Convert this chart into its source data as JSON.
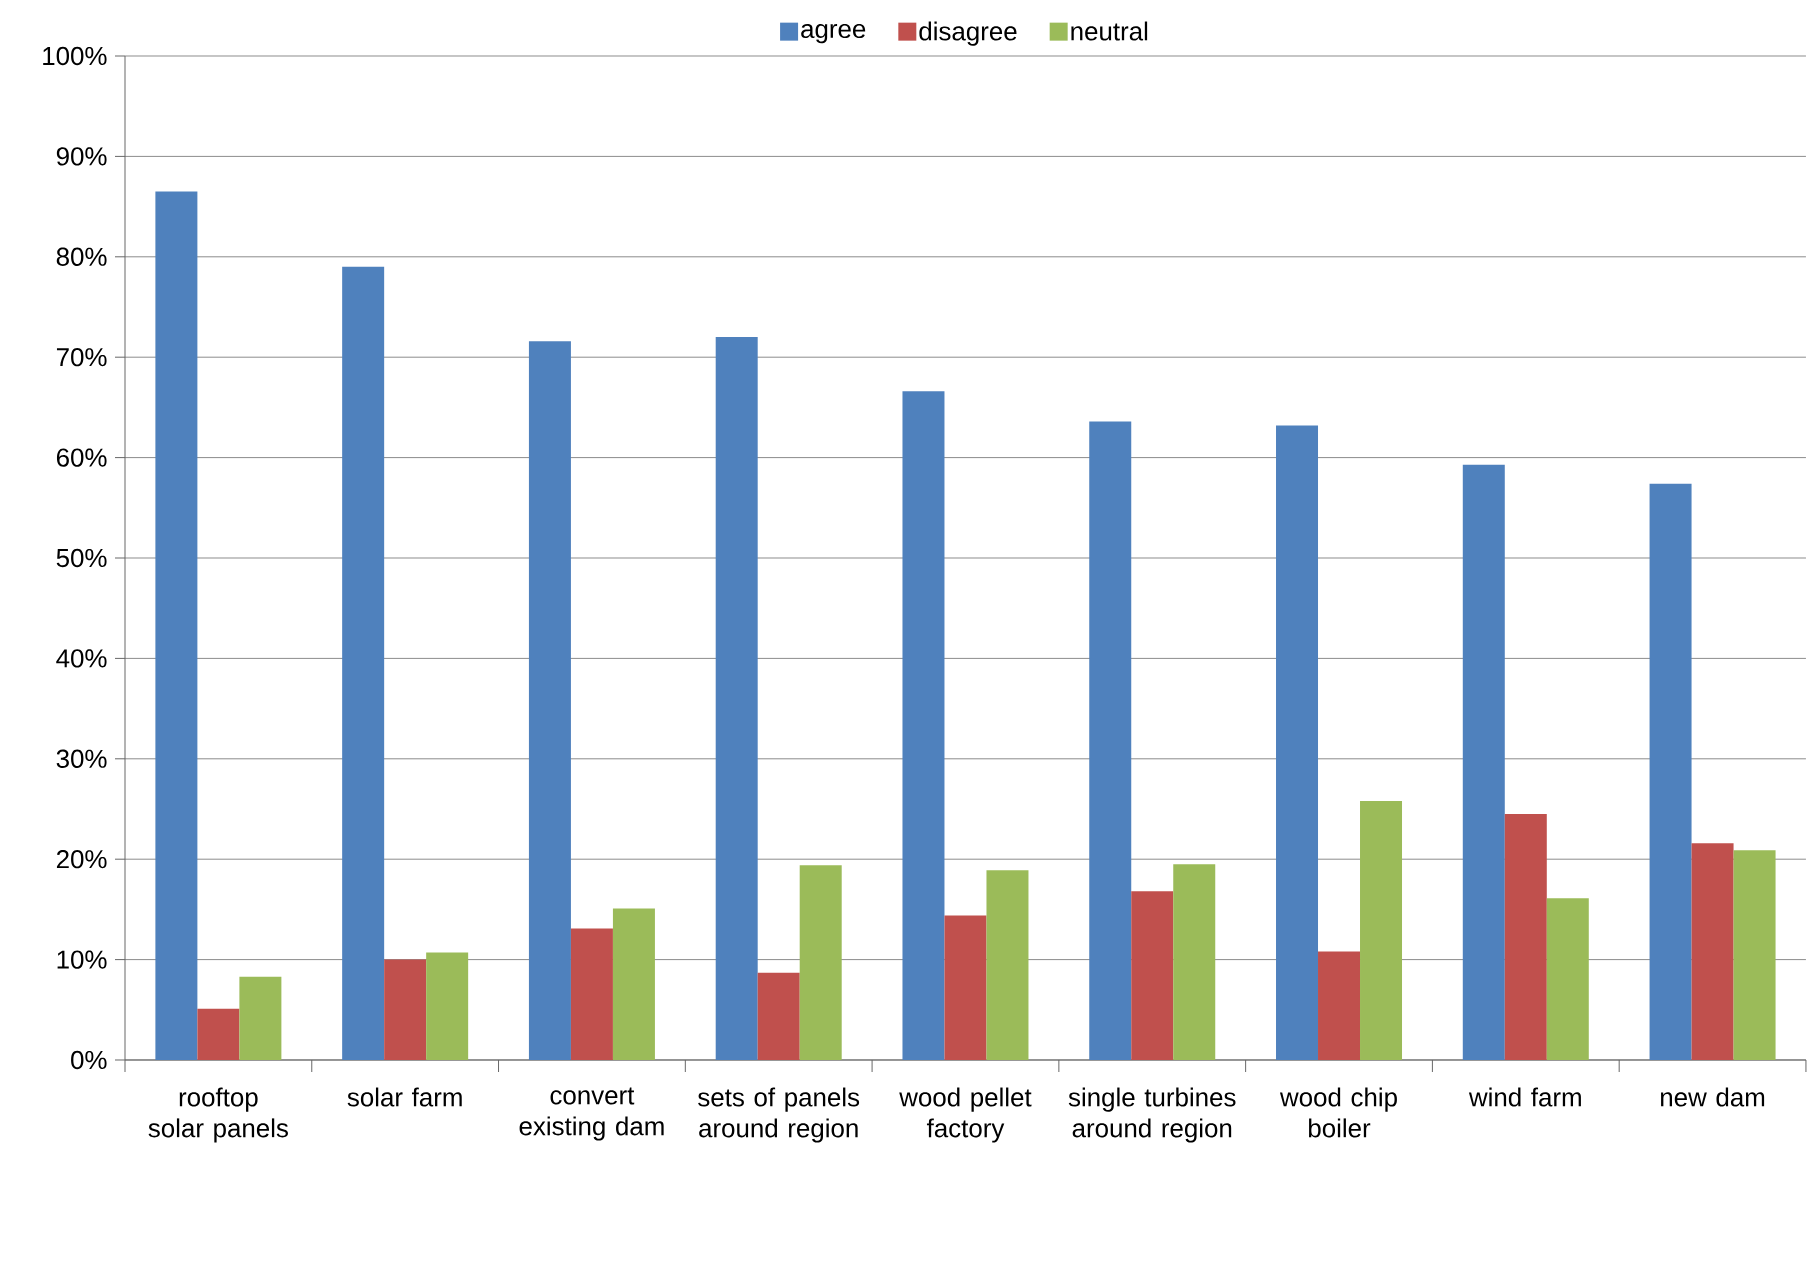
{
  "chart_data": {
    "type": "bar",
    "categories": [
      "rooftop solar panels",
      "solar farm",
      "convert existing dam",
      "sets of panels around region",
      "wood pellet factory",
      "single turbines around region",
      "wood chip boiler",
      "wind farm",
      "new dam"
    ],
    "series": [
      {
        "name": "agree",
        "color": "#4f81bd",
        "values": [
          86.5,
          79.0,
          71.6,
          72.0,
          66.6,
          63.6,
          63.2,
          59.3,
          57.4
        ]
      },
      {
        "name": "disagree",
        "color": "#c0504d",
        "values": [
          5.1,
          10.0,
          13.1,
          8.7,
          14.4,
          16.8,
          10.8,
          24.5,
          21.6
        ]
      },
      {
        "name": "neutral",
        "color": "#9bbb59",
        "values": [
          8.3,
          10.7,
          15.1,
          19.4,
          18.9,
          19.5,
          25.8,
          16.1,
          20.9
        ]
      }
    ],
    "ylim": [
      0,
      100
    ],
    "yticks": [
      {
        "value": 0,
        "label": "0%"
      },
      {
        "value": 10,
        "label": "10%"
      },
      {
        "value": 20,
        "label": "20%"
      },
      {
        "value": 30,
        "label": "30%"
      },
      {
        "value": 40,
        "label": "40%"
      },
      {
        "value": 50,
        "label": "50%"
      },
      {
        "value": 60,
        "label": "60%"
      },
      {
        "value": 70,
        "label": "70%"
      },
      {
        "value": 80,
        "label": "80%"
      },
      {
        "value": 90,
        "label": "90%"
      },
      {
        "value": 100,
        "label": "100%"
      }
    ],
    "grid": "y",
    "legend": "top"
  }
}
